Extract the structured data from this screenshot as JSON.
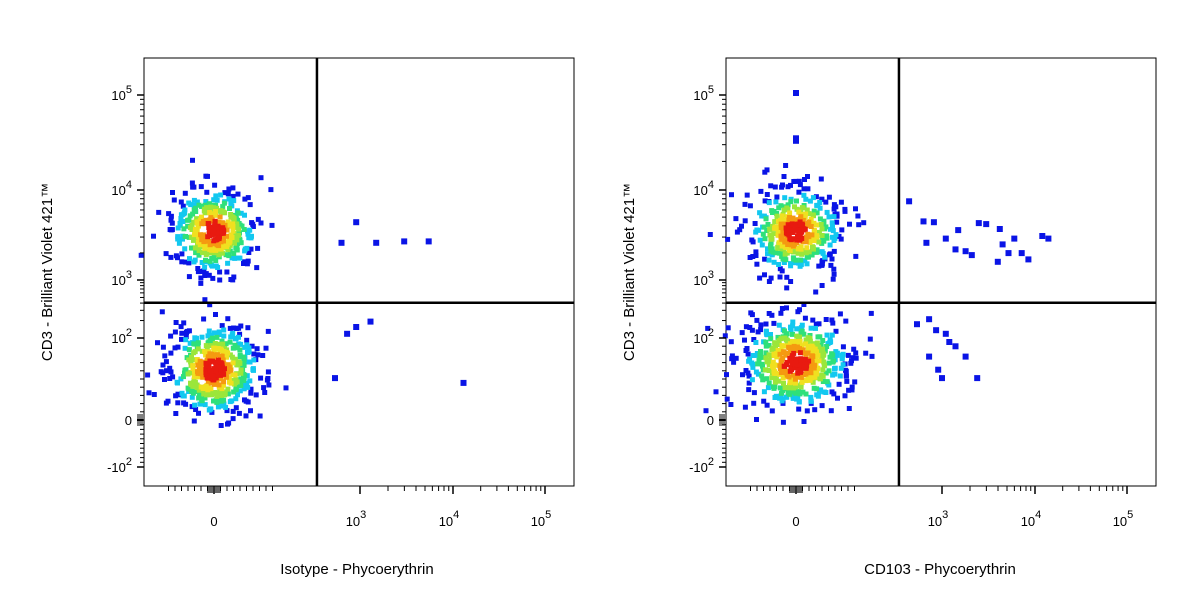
{
  "chart_data": [
    {
      "type": "scatter",
      "xlabel": "Isotype - Phycoerythrin",
      "ylabel": "CD3 - Brilliant Violet 421™",
      "xscale": "biexponential",
      "yscale": "biexponential",
      "x_ticks": [
        {
          "base": "0",
          "exp": ""
        },
        {
          "base": "10",
          "exp": "3"
        },
        {
          "base": "10",
          "exp": "4"
        },
        {
          "base": "10",
          "exp": "5"
        }
      ],
      "y_ticks": [
        {
          "base": "-10",
          "exp": "2"
        },
        {
          "base": "0",
          "exp": ""
        },
        {
          "base": "10",
          "exp": "2"
        },
        {
          "base": "10",
          "exp": "3"
        },
        {
          "base": "10",
          "exp": "4"
        },
        {
          "base": "10",
          "exp": "5"
        }
      ],
      "quadrant_gate": {
        "x": 300,
        "y": 420
      },
      "populations": [
        {
          "cx": 0,
          "cy": 3500,
          "count": 420,
          "sx": 0.55,
          "sy": 0.55
        },
        {
          "cx": 0,
          "cy": 40,
          "count": 480,
          "sx": 0.6,
          "sy": 0.6
        }
      ],
      "outliers": [
        [
          600,
          2600
        ],
        [
          900,
          4400
        ],
        [
          1500,
          2600
        ],
        [
          3000,
          2700
        ],
        [
          5500,
          2700
        ],
        [
          900,
          160
        ],
        [
          700,
          120
        ],
        [
          1300,
          200
        ],
        [
          500,
          30
        ],
        [
          13000,
          25
        ]
      ]
    },
    {
      "type": "scatter",
      "xlabel": "CD103 - Phycoerythrin",
      "ylabel": "CD3 - Brilliant Violet 421™",
      "xscale": "biexponential",
      "yscale": "biexponential",
      "x_ticks": [
        {
          "base": "0",
          "exp": ""
        },
        {
          "base": "10",
          "exp": "3"
        },
        {
          "base": "10",
          "exp": "4"
        },
        {
          "base": "10",
          "exp": "5"
        }
      ],
      "y_ticks": [
        {
          "base": "-10",
          "exp": "2"
        },
        {
          "base": "0",
          "exp": ""
        },
        {
          "base": "10",
          "exp": "2"
        },
        {
          "base": "10",
          "exp": "3"
        },
        {
          "base": "10",
          "exp": "4"
        },
        {
          "base": "10",
          "exp": "5"
        }
      ],
      "quadrant_gate": {
        "x": 300,
        "y": 420
      },
      "populations": [
        {
          "cx": 0,
          "cy": 3500,
          "count": 430,
          "sx": 0.6,
          "sy": 0.55
        },
        {
          "cx": 0,
          "cy": 50,
          "count": 520,
          "sx": 0.7,
          "sy": 0.6
        }
      ],
      "outliers": [
        [
          400,
          7500
        ],
        [
          600,
          4500
        ],
        [
          800,
          4400
        ],
        [
          650,
          2600
        ],
        [
          1100,
          2900
        ],
        [
          1400,
          2200
        ],
        [
          1800,
          2100
        ],
        [
          2100,
          1900
        ],
        [
          1500,
          3600
        ],
        [
          2500,
          4300
        ],
        [
          3000,
          4200
        ],
        [
          4200,
          3700
        ],
        [
          4500,
          2500
        ],
        [
          5200,
          2000
        ],
        [
          6000,
          2900
        ],
        [
          7200,
          2000
        ],
        [
          8500,
          1700
        ],
        [
          12000,
          3100
        ],
        [
          14000,
          2900
        ],
        [
          4000,
          1600
        ],
        [
          500,
          180
        ],
        [
          700,
          220
        ],
        [
          850,
          140
        ],
        [
          1200,
          90
        ],
        [
          1400,
          80
        ],
        [
          1800,
          60
        ],
        [
          700,
          60
        ],
        [
          900,
          40
        ],
        [
          1000,
          30
        ],
        [
          2400,
          30
        ],
        [
          1100,
          120
        ],
        [
          0,
          105000
        ],
        [
          0,
          35000
        ],
        [
          0,
          33000
        ]
      ]
    }
  ]
}
